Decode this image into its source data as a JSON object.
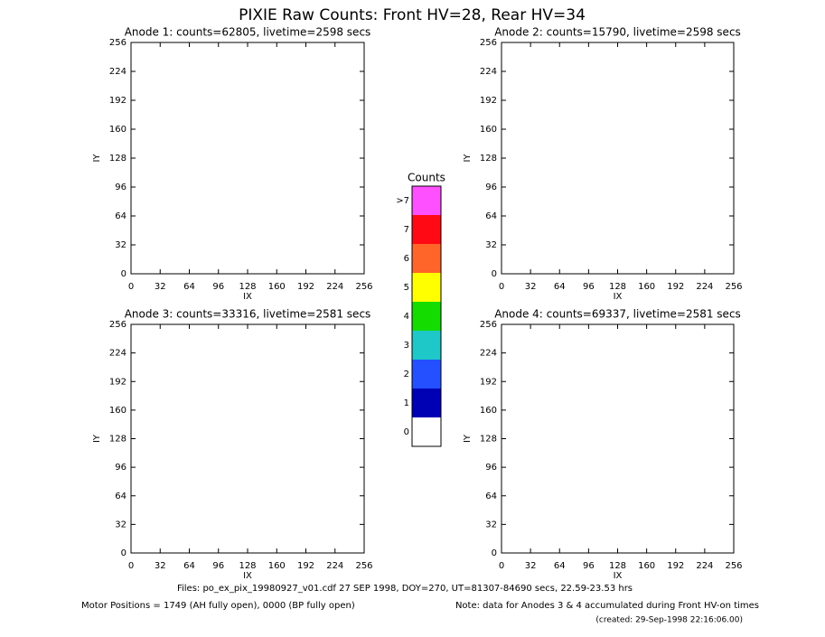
{
  "title": "PIXIE Raw Counts:  Front HV=28, Rear HV=34",
  "chart_data": [
    {
      "type": "heatmap",
      "title": "Anode 1: counts=62805, livetime=2598 secs",
      "x_label": "IX",
      "y_label": "IY",
      "xlim": [
        0,
        256
      ],
      "ylim": [
        0,
        256
      ],
      "xticks": [
        0,
        32,
        64,
        96,
        128,
        160,
        192,
        224,
        256
      ],
      "yticks": [
        0,
        32,
        64,
        96,
        128,
        160,
        192,
        224,
        256
      ]
    },
    {
      "type": "heatmap",
      "title": "Anode 2: counts=15790, livetime=2598 secs",
      "x_label": "IX",
      "y_label": "IY",
      "xlim": [
        0,
        256
      ],
      "ylim": [
        0,
        256
      ],
      "xticks": [
        0,
        32,
        64,
        96,
        128,
        160,
        192,
        224,
        256
      ],
      "yticks": [
        0,
        32,
        64,
        96,
        128,
        160,
        192,
        224,
        256
      ]
    },
    {
      "type": "heatmap",
      "title": "Anode 3: counts=33316, livetime=2581 secs",
      "x_label": "IX",
      "y_label": "IY",
      "xlim": [
        0,
        256
      ],
      "ylim": [
        0,
        256
      ],
      "xticks": [
        0,
        32,
        64,
        96,
        128,
        160,
        192,
        224,
        256
      ],
      "yticks": [
        0,
        32,
        64,
        96,
        128,
        160,
        192,
        224,
        256
      ]
    },
    {
      "type": "heatmap",
      "title": "Anode 4: counts=69337, livetime=2581 secs",
      "x_label": "IX",
      "y_label": "IY",
      "xlim": [
        0,
        256
      ],
      "ylim": [
        0,
        256
      ],
      "xticks": [
        0,
        32,
        64,
        96,
        128,
        160,
        192,
        224,
        256
      ],
      "yticks": [
        0,
        32,
        64,
        96,
        128,
        160,
        192,
        224,
        256
      ]
    }
  ],
  "colorbar": {
    "title": "Counts",
    "labels": [
      "0",
      "1",
      "2",
      "3",
      "4",
      "5",
      "6",
      "7",
      ">7"
    ],
    "colors": [
      "#ffffff",
      "#0000b4",
      "#2450ff",
      "#1ec8c8",
      "#14dc00",
      "#ffff00",
      "#ff6428",
      "#ff0a14",
      "#ff50ff"
    ]
  },
  "footer": {
    "files": "Files: po_ex_pix_19980927_v01.cdf    27 SEP 1998, DOY=270, UT=81307-84690 secs, 22.59-23.53 hrs",
    "motor": "Motor Positions = 1749 (AH fully open), 0000 (BP fully open)",
    "note": "Note: data for Anodes 3 & 4 accumulated during Front HV-on times",
    "created": "(created: 29-Sep-1998 22:16:06.00)"
  }
}
